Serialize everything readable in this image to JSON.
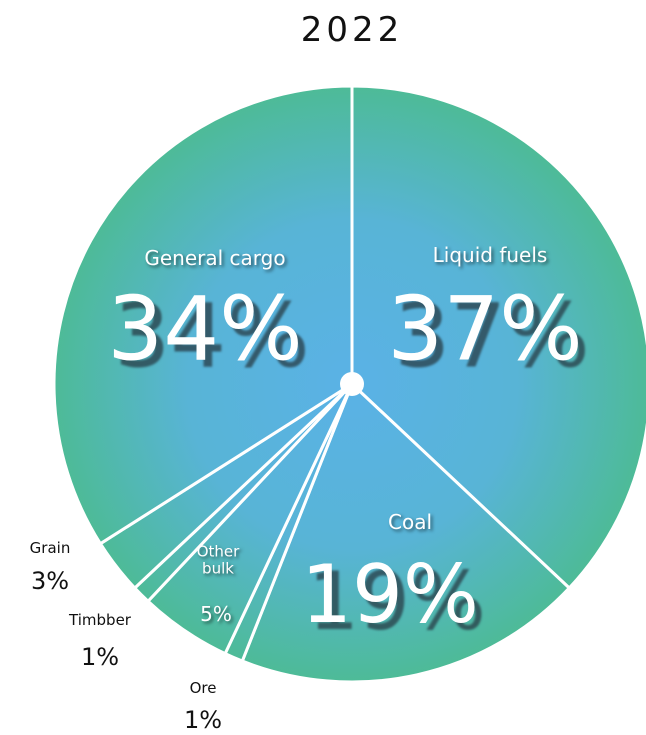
{
  "chart_data": {
    "type": "pie",
    "title": "2022",
    "categories": [
      "Liquid fuels",
      "Coal",
      "Ore",
      "Other bulk",
      "Timbber",
      "Grain",
      "General cargo"
    ],
    "values": [
      37,
      19,
      1,
      5,
      1,
      3,
      34
    ],
    "value_labels": [
      "37%",
      "19%",
      "1%",
      "5%",
      "1%",
      "3%",
      "34%"
    ]
  }
}
